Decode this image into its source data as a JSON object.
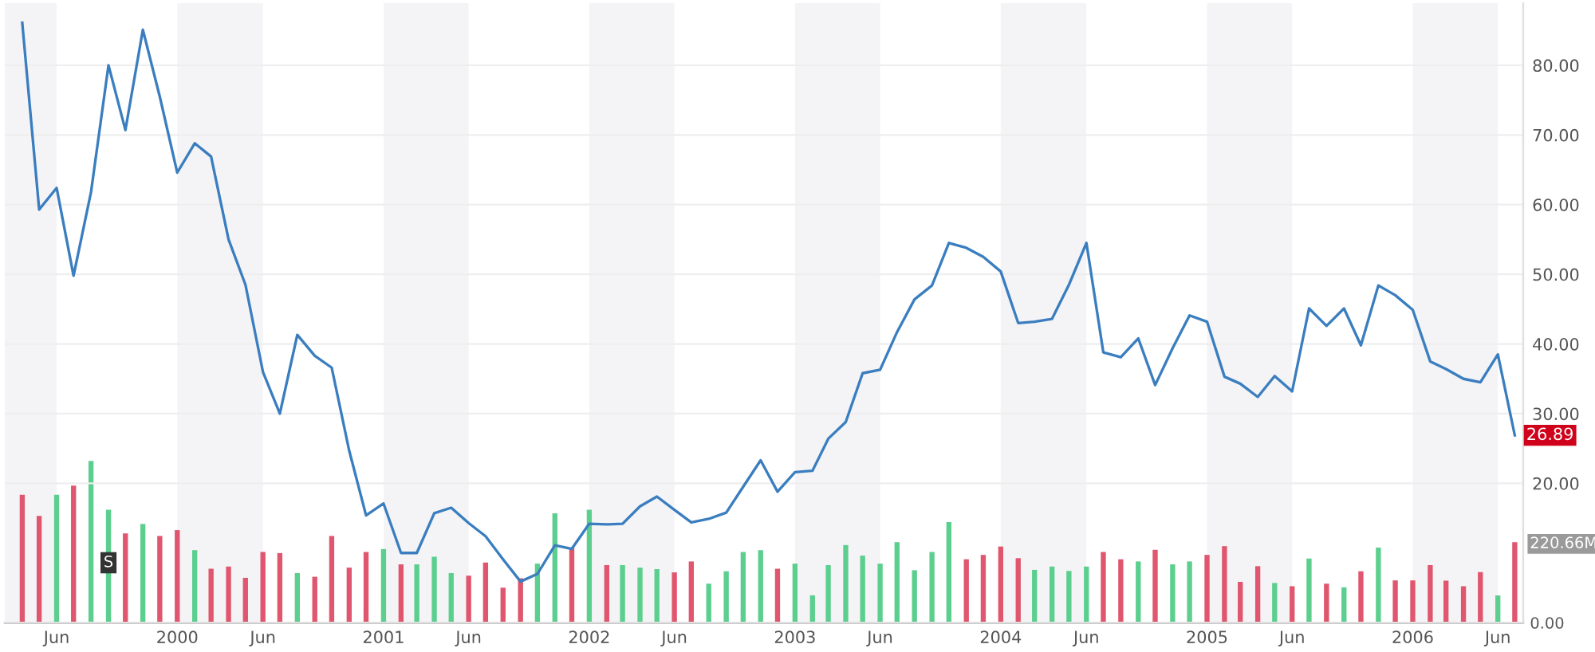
{
  "chart_data": {
    "type": "line",
    "x": [
      "1999-04",
      "1999-05",
      "1999-06",
      "1999-07",
      "1999-08",
      "1999-09",
      "1999-10",
      "1999-11",
      "1999-12",
      "2000-01",
      "2000-02",
      "2000-03",
      "2000-04",
      "2000-05",
      "2000-06",
      "2000-07",
      "2000-08",
      "2000-09",
      "2000-10",
      "2000-11",
      "2000-12",
      "2001-01",
      "2001-02",
      "2001-03",
      "2001-04",
      "2001-05",
      "2001-06",
      "2001-07",
      "2001-08",
      "2001-09",
      "2001-10",
      "2001-11",
      "2001-12",
      "2002-01",
      "2002-02",
      "2002-03",
      "2002-04",
      "2002-05",
      "2002-06",
      "2002-07",
      "2002-08",
      "2002-09",
      "2002-10",
      "2002-11",
      "2002-12",
      "2003-01",
      "2003-02",
      "2003-03",
      "2003-04",
      "2003-05",
      "2003-06",
      "2003-07",
      "2003-08",
      "2003-09",
      "2003-10",
      "2003-11",
      "2003-12",
      "2004-01",
      "2004-02",
      "2004-03",
      "2004-04",
      "2004-05",
      "2004-06",
      "2004-07",
      "2004-08",
      "2004-09",
      "2004-10",
      "2004-11",
      "2004-12",
      "2005-01",
      "2005-02",
      "2005-03",
      "2005-04",
      "2005-05",
      "2005-06",
      "2005-07",
      "2005-08",
      "2005-09",
      "2005-10",
      "2005-11",
      "2005-12",
      "2006-01",
      "2006-02",
      "2006-03",
      "2006-04",
      "2006-05",
      "2006-06",
      "2006-07"
    ],
    "series": [
      {
        "color": "#3a7ebf",
        "values": [
          86.1,
          59.3,
          62.4,
          49.8,
          61.8,
          80.0,
          70.7,
          85.1,
          75.5,
          64.6,
          68.8,
          66.9,
          55.0,
          48.5,
          36.0,
          30.0,
          41.3,
          38.3,
          36.6,
          24.7,
          15.4,
          17.1,
          10.0,
          10.0,
          15.7,
          16.5,
          14.3,
          12.4,
          9.1,
          5.9,
          7.0,
          11.1,
          10.6,
          14.2,
          14.1,
          14.2,
          16.7,
          18.1,
          16.2,
          14.4,
          14.9,
          15.8,
          19.5,
          23.3,
          18.8,
          21.6,
          21.8,
          26.4,
          28.8,
          35.8,
          36.3,
          41.7,
          46.4,
          48.4,
          54.5,
          53.8,
          52.5,
          50.4,
          43.0,
          43.2,
          43.6,
          48.5,
          54.5,
          38.8,
          38.1,
          40.8,
          34.1,
          39.4,
          44.1,
          43.2,
          35.3,
          34.3,
          32.4,
          35.4,
          33.2,
          45.1,
          42.6,
          45.1,
          39.8,
          48.4,
          47.0,
          44.9,
          37.5,
          36.4,
          35.0,
          34.5,
          38.5,
          26.89
        ]
      },
      {
        "type": "bar",
        "axis": "y2",
        "colors": [
          "#e0566e",
          "#e0566e",
          "#5ccf8f",
          "#e0566e",
          "#5ccf8f",
          "#5ccf8f",
          "#e0566e",
          "#5ccf8f",
          "#e0566e",
          "#e0566e",
          "#5ccf8f",
          "#e0566e",
          "#e0566e",
          "#e0566e",
          "#e0566e",
          "#e0566e",
          "#5ccf8f",
          "#e0566e",
          "#e0566e",
          "#e0566e",
          "#e0566e",
          "#5ccf8f",
          "#e0566e",
          "#5ccf8f",
          "#5ccf8f",
          "#5ccf8f",
          "#e0566e",
          "#e0566e",
          "#e0566e",
          "#e0566e",
          "#5ccf8f",
          "#5ccf8f",
          "#e0566e",
          "#5ccf8f",
          "#e0566e",
          "#5ccf8f",
          "#5ccf8f",
          "#5ccf8f",
          "#e0566e",
          "#e0566e",
          "#5ccf8f",
          "#5ccf8f",
          "#5ccf8f",
          "#5ccf8f",
          "#e0566e",
          "#5ccf8f",
          "#5ccf8f",
          "#5ccf8f",
          "#5ccf8f",
          "#5ccf8f",
          "#5ccf8f",
          "#5ccf8f",
          "#5ccf8f",
          "#5ccf8f",
          "#5ccf8f",
          "#e0566e",
          "#e0566e",
          "#e0566e",
          "#e0566e",
          "#5ccf8f",
          "#5ccf8f",
          "#5ccf8f",
          "#5ccf8f",
          "#e0566e",
          "#e0566e",
          "#5ccf8f",
          "#e0566e",
          "#5ccf8f",
          "#5ccf8f",
          "#e0566e",
          "#e0566e",
          "#e0566e",
          "#e0566e",
          "#5ccf8f",
          "#e0566e",
          "#5ccf8f",
          "#e0566e",
          "#5ccf8f",
          "#e0566e",
          "#5ccf8f",
          "#e0566e",
          "#e0566e",
          "#e0566e",
          "#e0566e",
          "#e0566e",
          "#e0566e",
          "#5ccf8f",
          "#e0566e"
        ],
        "values": [
          351,
          293,
          351,
          376,
          444,
          310,
          245,
          271,
          238,
          254,
          199,
          148,
          154,
          123,
          194,
          191,
          136,
          126,
          238,
          151,
          194,
          202,
          160,
          160,
          181,
          136,
          129,
          165,
          96,
          122,
          162,
          300,
          206,
          310,
          158,
          158,
          151,
          147,
          138,
          168,
          107,
          141,
          194,
          199,
          148,
          162,
          75,
          158,
          213,
          184,
          162,
          221,
          144,
          194,
          276,
          174,
          186,
          209,
          177,
          145,
          154,
          142,
          154,
          194,
          174,
          168,
          200,
          160,
          168,
          186,
          210,
          112,
          155,
          109,
          100,
          176,
          107,
          97,
          141,
          206,
          116,
          116,
          158,
          115,
          100,
          139,
          75,
          220.66
        ]
      }
    ],
    "xlim": [
      "1999-03-01",
      "2006-07-16"
    ],
    "xticks": [
      {
        "value": "1999-06",
        "label": "Jun"
      },
      {
        "value": "2000-01",
        "label": "2000"
      },
      {
        "value": "2000-06",
        "label": "Jun"
      },
      {
        "value": "2001-01",
        "label": "2001"
      },
      {
        "value": "2001-06",
        "label": "Jun"
      },
      {
        "value": "2002-01",
        "label": "2002"
      },
      {
        "value": "2002-06",
        "label": "Jun"
      },
      {
        "value": "2003-01",
        "label": "2003"
      },
      {
        "value": "2003-06",
        "label": "Jun"
      },
      {
        "value": "2004-01",
        "label": "2004"
      },
      {
        "value": "2004-06",
        "label": "Jun"
      },
      {
        "value": "2005-01",
        "label": "2005"
      },
      {
        "value": "2005-06",
        "label": "Jun"
      },
      {
        "value": "2006-01",
        "label": "2006"
      },
      {
        "value": "2006-06",
        "label": "Jun"
      }
    ],
    "ylim": [
      0,
      88.9
    ],
    "yticks": [
      {
        "value": 20,
        "label": "20.00"
      },
      {
        "value": 30,
        "label": "30.00"
      },
      {
        "value": 40,
        "label": "40.00"
      },
      {
        "value": 50,
        "label": "50.00"
      },
      {
        "value": 60,
        "label": "60.00"
      },
      {
        "value": 70,
        "label": "70.00"
      },
      {
        "value": 80,
        "label": "80.00"
      }
    ],
    "y2lim": [
      0,
      1700
    ],
    "y2ticks": [
      {
        "value": 0,
        "label": "0.00"
      },
      {
        "value": 220.66,
        "label": "220.66M"
      }
    ],
    "grid": "y",
    "bands": [
      {
        "axis": "x",
        "from": "1999-03-01",
        "to": "1999-06",
        "color": "#f4f4f7"
      },
      {
        "axis": "x",
        "from": "2000-01",
        "to": "2000-06",
        "color": "#f4f4f7"
      },
      {
        "axis": "x",
        "from": "2001-01",
        "to": "2001-06",
        "color": "#f4f4f7"
      },
      {
        "axis": "x",
        "from": "2002-01",
        "to": "2002-06",
        "color": "#f4f4f7"
      },
      {
        "axis": "x",
        "from": "2003-01",
        "to": "2003-06",
        "color": "#f4f4f7"
      },
      {
        "axis": "x",
        "from": "2004-01",
        "to": "2004-06",
        "color": "#f4f4f7"
      },
      {
        "axis": "x",
        "from": "2005-01",
        "to": "2005-06",
        "color": "#f4f4f7"
      },
      {
        "axis": "x",
        "from": "2006-01",
        "to": "2006-06",
        "color": "#f4f4f7"
      }
    ],
    "annotations": [
      {
        "text": "26.89",
        "x": "2006-07",
        "y": 26.89
      },
      {
        "text": "S",
        "x": "1999-09",
        "y": 8.6
      }
    ]
  }
}
